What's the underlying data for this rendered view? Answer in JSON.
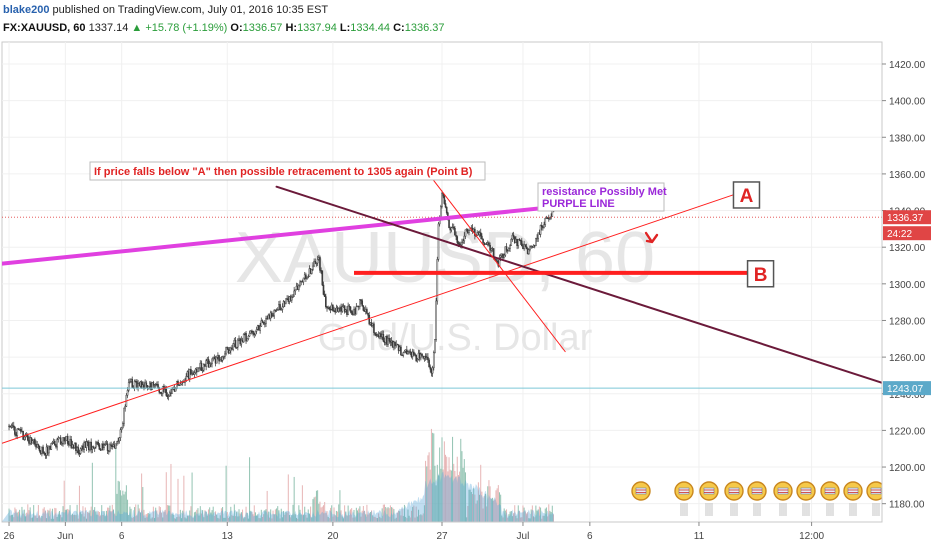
{
  "header": {
    "user": "blake200",
    "published": "published on TradingView.com, July 01, 2016 10:35 EST",
    "symbol": "FX:XAUUSD, 60",
    "last": "1337.14",
    "up_arrow": "▲",
    "change": "+15.78 (+1.19%)",
    "open_label": "O:",
    "open": "1336.57",
    "high_label": "H:",
    "high": "1337.94",
    "low_label": "L:",
    "low": "1334.44",
    "close_label": "C:",
    "close": "1336.37"
  },
  "watermark": {
    "symbol": "XAUUSD, 60",
    "name": "Gold/U.S. Dollar"
  },
  "annotations": {
    "note_text": "If price falls below \"A\" then possible retracement to 1305 again (Point B)",
    "resistance_line1": "resistance Possibly Met",
    "resistance_line2": "PURPLE LINE",
    "label_a": "A",
    "label_b": "B"
  },
  "price_badges": {
    "current": "1336.37",
    "countdown": "24:22",
    "hline": "1243.07"
  },
  "colors": {
    "up_candle": "#3a3a3a",
    "down_candle": "#3a3a3a",
    "volume_up": "#7fb8a4",
    "volume_down": "#e3a8a8",
    "volume_area": "#4fa3d9",
    "trend_red": "#ff1f1f",
    "magenta": "#e040e0",
    "dark_line": "#6b1a3a",
    "hline": "#7cc7d6",
    "badge_red": "#e04545",
    "badge_blue": "#5ca9c9"
  },
  "chart_data": {
    "type": "candlestick",
    "ylim": [
      1170,
      1432
    ],
    "y_ticks": [
      "1180.00",
      "1200.00",
      "1220.00",
      "1240.00",
      "1260.00",
      "1280.00",
      "1300.00",
      "1320.00",
      "1340.00",
      "1360.00",
      "1380.00",
      "1400.00",
      "1420.00"
    ],
    "x_ticks": [
      "26",
      "Jun",
      "6",
      "13",
      "20",
      "27",
      "Jul",
      "6",
      "11",
      "12:00"
    ],
    "x_tick_times": [
      0,
      16,
      32,
      62,
      92,
      123,
      146,
      165,
      196,
      228
    ],
    "x_range": [
      -2,
      248
    ],
    "price_path": [
      [
        0,
        1222
      ],
      [
        5,
        1216
      ],
      [
        10,
        1208
      ],
      [
        12,
        1212
      ],
      [
        16,
        1215
      ],
      [
        20,
        1209
      ],
      [
        22,
        1212
      ],
      [
        26,
        1211
      ],
      [
        30,
        1210
      ],
      [
        32,
        1222
      ],
      [
        34,
        1246
      ],
      [
        38,
        1245
      ],
      [
        42,
        1243
      ],
      [
        46,
        1240
      ],
      [
        48,
        1246
      ],
      [
        52,
        1252
      ],
      [
        56,
        1256
      ],
      [
        60,
        1260
      ],
      [
        64,
        1267
      ],
      [
        68,
        1272
      ],
      [
        72,
        1278
      ],
      [
        76,
        1285
      ],
      [
        80,
        1293
      ],
      [
        84,
        1303
      ],
      [
        88,
        1314
      ],
      [
        90,
        1288
      ],
      [
        94,
        1286
      ],
      [
        98,
        1285
      ],
      [
        100,
        1290
      ],
      [
        104,
        1273
      ],
      [
        108,
        1268
      ],
      [
        112,
        1262
      ],
      [
        116,
        1260
      ],
      [
        118,
        1262
      ],
      [
        120,
        1250
      ],
      [
        121,
        1270
      ],
      [
        122,
        1332
      ],
      [
        123,
        1348
      ],
      [
        125,
        1333
      ],
      [
        128,
        1322
      ],
      [
        131,
        1331
      ],
      [
        134,
        1326
      ],
      [
        137,
        1318
      ],
      [
        139,
        1312
      ],
      [
        141,
        1318
      ],
      [
        143,
        1325
      ],
      [
        146,
        1320
      ],
      [
        148,
        1318
      ],
      [
        150,
        1325
      ],
      [
        152,
        1334
      ],
      [
        154,
        1338
      ]
    ],
    "volume_seed": 42,
    "trendlines": [
      {
        "name": "uptrend-red",
        "x": [
          -2,
          211
        ],
        "y": [
          1213,
          1352
        ]
      },
      {
        "name": "resistance-magenta",
        "x": [
          -2,
          160
        ],
        "y": [
          1311,
          1343
        ]
      },
      {
        "name": "downtrend-dark",
        "x": [
          76,
          248
        ],
        "y": [
          1353,
          1246
        ]
      },
      {
        "name": "steep-red",
        "x": [
          120,
          158
        ],
        "y": [
          1358,
          1263
        ]
      }
    ],
    "support_level": {
      "value": 1306,
      "x": [
        98,
        217
      ]
    },
    "horizontal_line": 1243.07,
    "current_price_line": 1336.37,
    "point_a": {
      "x": 209.5,
      "y": 1348.5
    },
    "point_b": {
      "x": 213.5,
      "y": 1305.5
    }
  }
}
